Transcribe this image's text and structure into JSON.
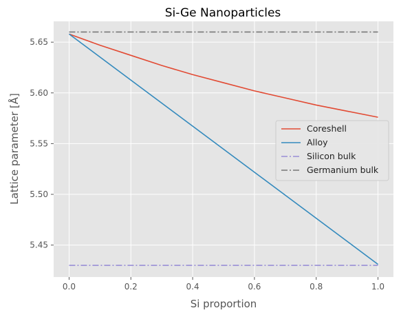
{
  "chart_data": {
    "type": "line",
    "title": "Si-Ge Nanoparticles",
    "xlabel": "Si proportion",
    "ylabel": "Lattice parameter [Å]",
    "xlim": [
      -0.05,
      1.05
    ],
    "ylim": [
      5.4185,
      5.6705
    ],
    "xticks": [
      0.0,
      0.2,
      0.4,
      0.6,
      0.8,
      1.0
    ],
    "xtick_labels": [
      "0.0",
      "0.2",
      "0.4",
      "0.6",
      "0.8",
      "1.0"
    ],
    "yticks": [
      5.45,
      5.5,
      5.55,
      5.6,
      5.65
    ],
    "ytick_labels": [
      "5.45",
      "5.50",
      "5.55",
      "5.60",
      "5.65"
    ],
    "grid": true,
    "legend_position": "right",
    "series": [
      {
        "name": "Coreshell",
        "color": "#E24A33",
        "style": "solid",
        "x": [
          0.0,
          0.1,
          0.2,
          0.3,
          0.4,
          0.5,
          0.6,
          0.7,
          0.8,
          0.9,
          1.0
        ],
        "y": [
          5.658,
          5.647,
          5.637,
          5.627,
          5.618,
          5.61,
          5.602,
          5.595,
          5.588,
          5.582,
          5.576
        ]
      },
      {
        "name": "Alloy",
        "color": "#348ABD",
        "style": "solid",
        "x": [
          0.0,
          1.0
        ],
        "y": [
          5.658,
          5.431
        ]
      },
      {
        "name": "Silicon bulk",
        "color": "#988ED5",
        "style": "dashdot",
        "x": [
          0.0,
          1.0
        ],
        "y": [
          5.43,
          5.43
        ]
      },
      {
        "name": "Germanium bulk",
        "color": "#777777",
        "style": "dashdot",
        "x": [
          0.0,
          1.0
        ],
        "y": [
          5.66,
          5.66
        ]
      }
    ]
  }
}
